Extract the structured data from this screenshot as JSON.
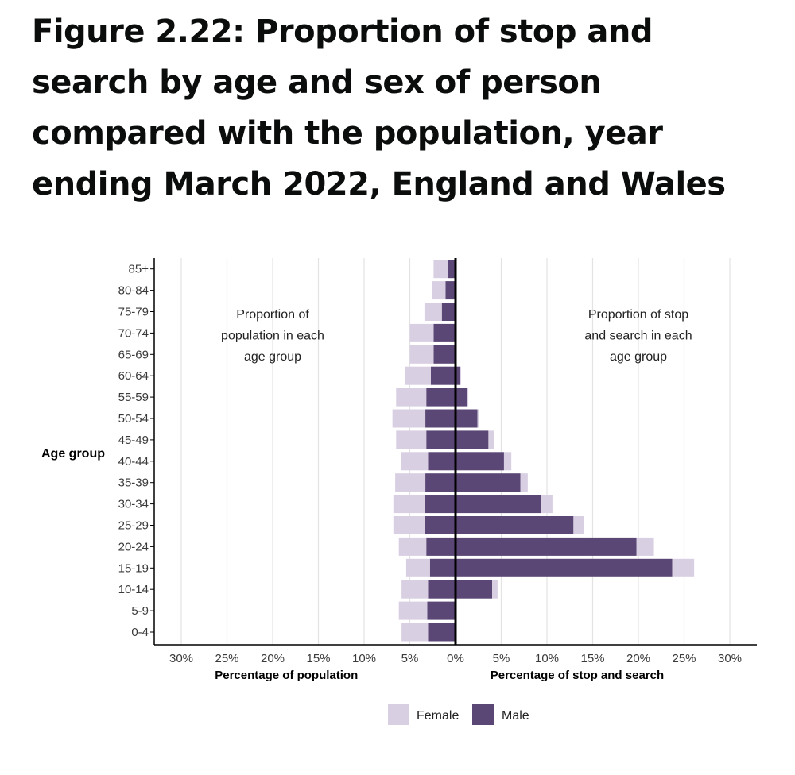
{
  "title": "Figure 2.22: Proportion of stop and search by age and sex of person compared with the population, year ending March 2022, England and Wales",
  "chart_data": {
    "type": "bar",
    "orientation": "horizontal-population-pyramid",
    "y_axis_label": "Age group",
    "categories": [
      "0-4",
      "5-9",
      "10-14",
      "15-19",
      "20-24",
      "25-29",
      "30-34",
      "35-39",
      "40-44",
      "45-49",
      "50-54",
      "55-59",
      "60-64",
      "65-69",
      "70-74",
      "75-79",
      "80-84",
      "85+"
    ],
    "panels": [
      {
        "side": "left",
        "xlabel": "Percentage of population",
        "annotation": [
          "Proportion of",
          "population in each",
          "age group"
        ],
        "series": [
          {
            "name": "Male",
            "values": [
              3.0,
              3.1,
              3.0,
              2.8,
              3.2,
              3.4,
              3.4,
              3.3,
              3.0,
              3.2,
              3.3,
              3.2,
              2.7,
              2.4,
              2.4,
              1.5,
              1.1,
              0.8
            ]
          },
          {
            "name": "Female",
            "values": [
              2.9,
              3.1,
              2.9,
              2.6,
              3.0,
              3.4,
              3.4,
              3.3,
              3.0,
              3.3,
              3.6,
              3.3,
              2.8,
              2.6,
              2.6,
              1.9,
              1.5,
              1.6
            ]
          }
        ]
      },
      {
        "side": "right",
        "xlabel": "Percentage of stop and search",
        "annotation": [
          "Proportion of stop",
          "and search in each",
          "age group"
        ],
        "series": [
          {
            "name": "Male",
            "values": [
              0.0,
              0.0,
              4.0,
              23.7,
              19.8,
              12.9,
              9.4,
              7.1,
              5.3,
              3.6,
              2.4,
              1.3,
              0.5,
              0.1,
              0.05,
              0.02,
              0.01,
              0.0
            ]
          },
          {
            "name": "Female",
            "values": [
              0.0,
              0.0,
              0.6,
              2.4,
              1.9,
              1.1,
              1.2,
              0.8,
              0.8,
              0.6,
              0.2,
              0.1,
              0.1,
              0.02,
              0.02,
              0.01,
              0.0,
              0.0
            ]
          }
        ]
      }
    ],
    "xlim": [
      -30,
      30
    ],
    "x_ticks": [
      -30,
      -25,
      -20,
      -15,
      -10,
      -5,
      0,
      5,
      10,
      15,
      20,
      25,
      30
    ],
    "x_tick_labels": [
      "30%",
      "25%",
      "20%",
      "15%",
      "10%",
      "5%",
      "0%",
      "5%",
      "10%",
      "15%",
      "20%",
      "25%",
      "30%"
    ],
    "legend": {
      "placement": "bottom",
      "items": [
        {
          "label": "Female",
          "color": "#d9cfe3"
        },
        {
          "label": "Male",
          "color": "#5b4775"
        }
      ]
    },
    "colors": {
      "male": "#5b4775",
      "female": "#d9cfe3",
      "grid": "#e3e3e3",
      "axis": "#000000",
      "text": "#3a3a3a"
    }
  }
}
